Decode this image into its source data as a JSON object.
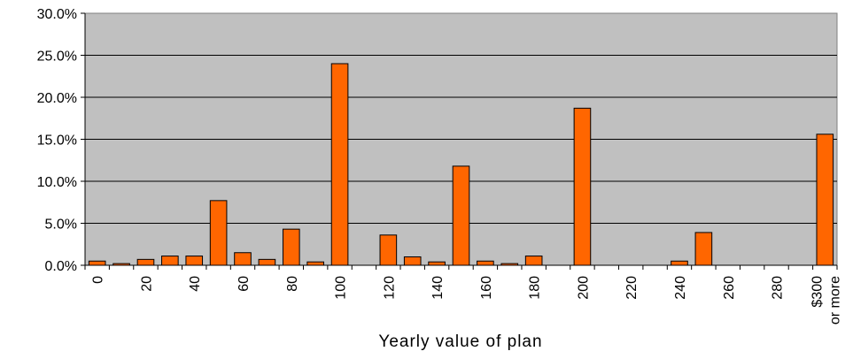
{
  "chart_data": {
    "type": "bar",
    "xlabel": "Yearly value of plan",
    "ylabel": "",
    "ylim": [
      0,
      30
    ],
    "y_ticks": [
      "0.0%",
      "5.0%",
      "10.0%",
      "15.0%",
      "20.0%",
      "25.0%",
      "30.0%"
    ],
    "grid": true,
    "colors": {
      "bar": "#ff6600",
      "plot_bg": "#c0c0c0",
      "grid": "#000000"
    },
    "categories": [
      "0",
      "10",
      "20",
      "30",
      "40",
      "50",
      "60",
      "70",
      "80",
      "90",
      "100",
      "110",
      "120",
      "130",
      "140",
      "150",
      "160",
      "170",
      "180",
      "190",
      "200",
      "210",
      "220",
      "230",
      "240",
      "250",
      "260",
      "270",
      "280",
      "290",
      "$300 or more"
    ],
    "x_tick_labels": [
      "0",
      "",
      "20",
      "",
      "40",
      "",
      "60",
      "",
      "80",
      "",
      "100",
      "",
      "120",
      "",
      "140",
      "",
      "160",
      "",
      "180",
      "",
      "200",
      "",
      "220",
      "",
      "240",
      "",
      "260",
      "",
      "280",
      "",
      "$300|or more"
    ],
    "values": [
      0.5,
      0.2,
      0.7,
      1.1,
      1.1,
      7.7,
      1.5,
      0.7,
      4.3,
      0.4,
      24.0,
      0.0,
      3.6,
      1.0,
      0.4,
      11.8,
      0.5,
      0.2,
      1.1,
      0.0,
      18.7,
      0.0,
      0.0,
      0.0,
      0.5,
      3.9,
      0.0,
      0.0,
      0.0,
      0.0,
      15.6
    ]
  }
}
